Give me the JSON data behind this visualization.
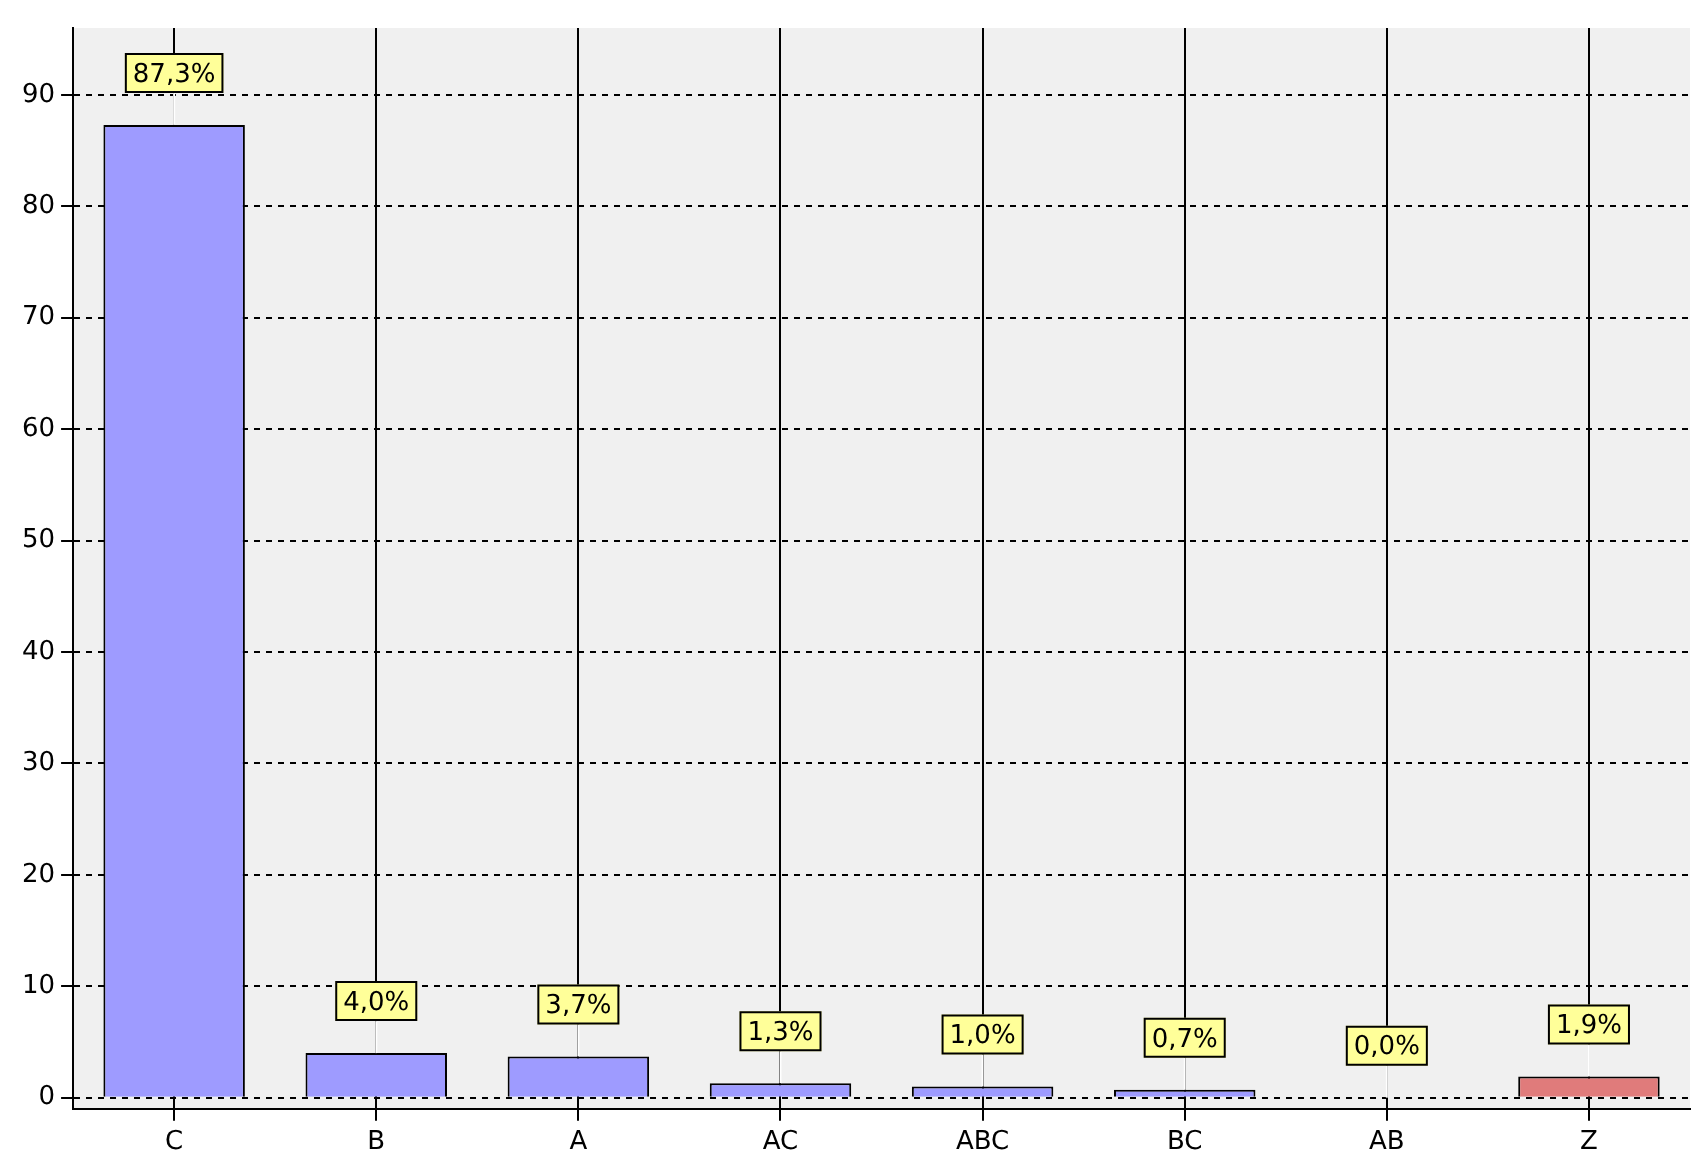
{
  "chart_data": {
    "type": "bar",
    "categories": [
      "C",
      "B",
      "A",
      "AC",
      "ABC",
      "BC",
      "AB",
      "Z"
    ],
    "values": [
      87.3,
      4.0,
      3.7,
      1.3,
      1.0,
      0.7,
      0.0,
      1.9
    ],
    "colors": [
      "#9e9bff",
      "#9e9bff",
      "#9e9bff",
      "#9e9bff",
      "#9e9bff",
      "#9e9bff",
      "#9e9bff",
      "#e07b7b"
    ],
    "value_labels": [
      "87,3%",
      "4,0%",
      "3,7%",
      "1,3%",
      "1,0%",
      "0,7%",
      "0,0%",
      "1,9%"
    ],
    "ylim": [
      -1,
      96
    ],
    "yticks": [
      0,
      10,
      20,
      30,
      40,
      50,
      60,
      70,
      80,
      90
    ],
    "grid": true,
    "legend": false
  }
}
